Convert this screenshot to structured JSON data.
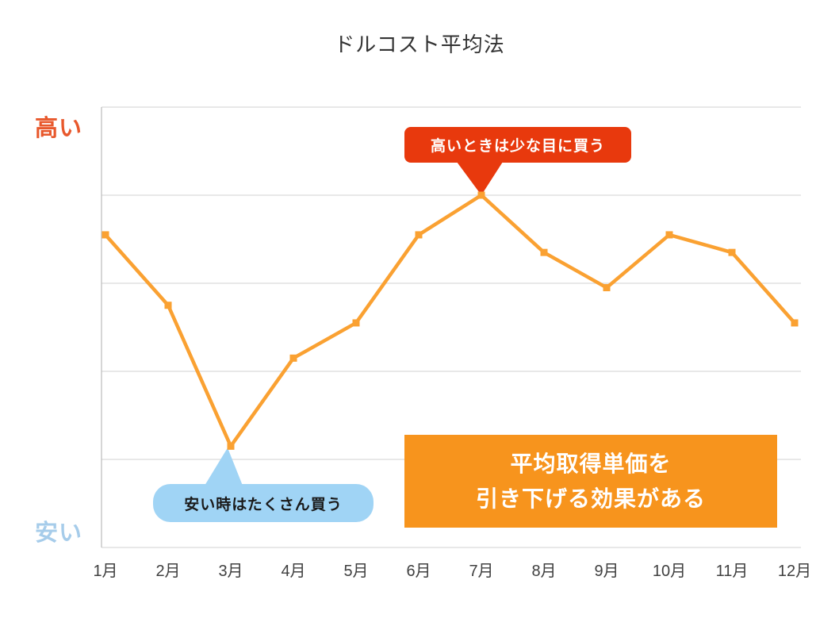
{
  "title": "ドルコスト平均法",
  "y_axis": {
    "high_label": "高い",
    "low_label": "安い",
    "high_label_color": "#E8582C",
    "low_label_color": "#A6CCEA"
  },
  "callouts": {
    "high": {
      "text": "高いときは少な目に買う",
      "color": "#E8390D",
      "text_color": "#ffffff",
      "target_month": "7月"
    },
    "low": {
      "text": "安い時はたくさん買う",
      "color": "#A0D4F5",
      "text_color": "#1a1a1a",
      "target_month": "3月"
    }
  },
  "effect_box": {
    "line1": "平均取得単価を",
    "line2": "引き下げる効果がある",
    "color": "#F7941D",
    "text_color": "#ffffff"
  },
  "chart_data": {
    "type": "line",
    "title": "ドルコスト平均法",
    "categories": [
      "1月",
      "2月",
      "3月",
      "4月",
      "5月",
      "6月",
      "7月",
      "8月",
      "9月",
      "10月",
      "11月",
      "12月"
    ],
    "values": [
      7.1,
      5.5,
      2.3,
      4.3,
      5.1,
      7.1,
      8.0,
      6.7,
      5.9,
      7.1,
      6.7,
      5.1
    ],
    "xlabel": "",
    "ylabel": "",
    "ylim": [
      0,
      10
    ],
    "grid": true,
    "gridline_step": 2,
    "legend": "none",
    "line_color": "#FAA132",
    "marker": "square",
    "gridline_color": "#D9D9D9",
    "axis_line_color": "#BFBFBF",
    "y_tick_labels": {
      "top": "高い",
      "bottom": "安い"
    },
    "annotations": [
      {
        "text": "高いときは少な目に買う",
        "target": "7月",
        "style": "red-speech-bubble"
      },
      {
        "text": "安い時はたくさん買う",
        "target": "3月",
        "style": "blue-speech-bubble"
      },
      {
        "text": "平均取得単価を引き下げる効果がある",
        "style": "orange-box"
      }
    ]
  }
}
